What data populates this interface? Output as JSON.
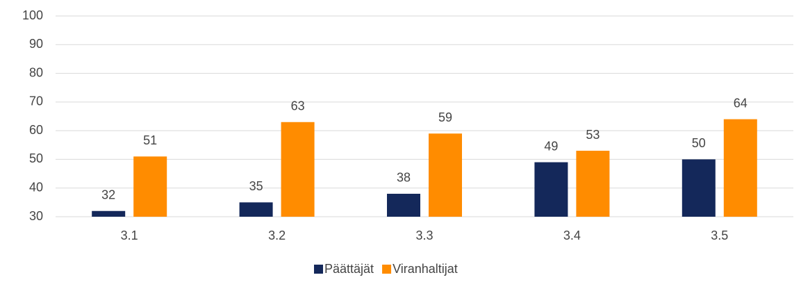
{
  "chart_data": {
    "type": "bar",
    "categories": [
      "3.1",
      "3.2",
      "3.3",
      "3.4",
      "3.5"
    ],
    "series": [
      {
        "name": "Päättäjät",
        "color": "#14285a",
        "values": [
          32,
          35,
          38,
          49,
          50
        ]
      },
      {
        "name": "Viranhaltijat",
        "color": "#ff8c00",
        "values": [
          51,
          63,
          59,
          53,
          64
        ]
      }
    ],
    "ylim": [
      30,
      100
    ],
    "yticks": [
      30,
      40,
      50,
      60,
      70,
      80,
      90,
      100
    ],
    "grid": true,
    "legend": "bottom"
  }
}
